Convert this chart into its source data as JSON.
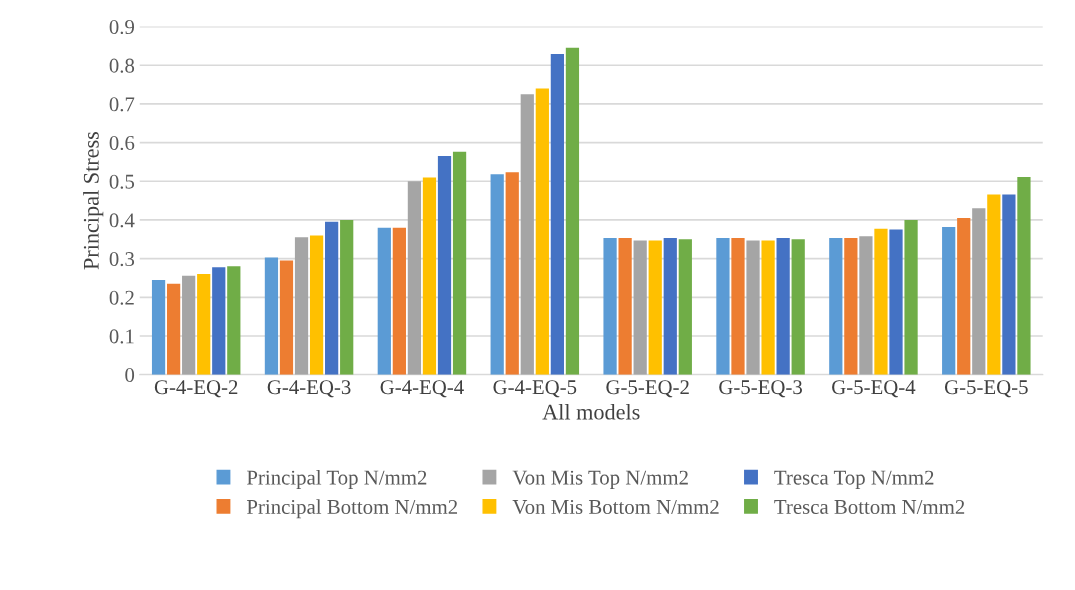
{
  "chart_data": {
    "type": "bar",
    "xlabel": "All models",
    "ylabel": "Principal Stress",
    "categories": [
      "G-4-EQ-2",
      "G-4-EQ-3",
      "G-4-EQ-4",
      "G-4-EQ-5",
      "G-5-EQ-2",
      "G-5-EQ-3",
      "G-5-EQ-4",
      "G-5-EQ-5"
    ],
    "series": [
      {
        "name": "Principal Top N/mm2",
        "color": "#5b9bd5",
        "values": [
          0.245,
          0.303,
          0.38,
          0.518,
          0.353,
          0.353,
          0.353,
          0.382
        ]
      },
      {
        "name": "Principal Bottom N/mm2",
        "color": "#ed7d31",
        "values": [
          0.235,
          0.295,
          0.38,
          0.523,
          0.353,
          0.353,
          0.353,
          0.405
        ]
      },
      {
        "name": "Von Mis Top N/mm2",
        "color": "#a5a5a5",
        "values": [
          0.256,
          0.355,
          0.5,
          0.725,
          0.347,
          0.347,
          0.358,
          0.43
        ]
      },
      {
        "name": "Von Mis Bottom N/mm2",
        "color": "#ffc000",
        "values": [
          0.26,
          0.36,
          0.51,
          0.74,
          0.347,
          0.347,
          0.377,
          0.466
        ]
      },
      {
        "name": "Tresca Top N/mm2",
        "color": "#4472c4",
        "values": [
          0.278,
          0.395,
          0.565,
          0.829,
          0.353,
          0.353,
          0.375,
          0.466
        ]
      },
      {
        "name": "Tresca Bottom N/mm2",
        "color": "#70ad47",
        "values": [
          0.28,
          0.4,
          0.576,
          0.845,
          0.35,
          0.35,
          0.4,
          0.511
        ]
      }
    ],
    "ylim": [
      0,
      0.9
    ],
    "yticks": [
      0,
      0.1,
      0.2,
      0.3,
      0.4,
      0.5,
      0.6,
      0.7,
      0.8,
      0.9
    ],
    "grid": "y",
    "legend": "bottom"
  }
}
